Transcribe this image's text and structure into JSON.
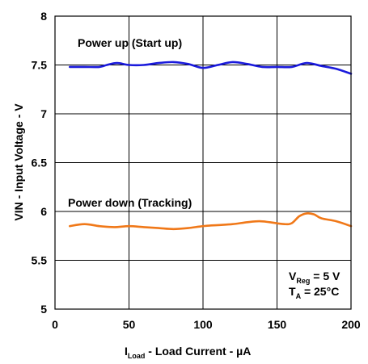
{
  "chart_data": {
    "type": "line",
    "xlabel": {
      "main": "I",
      "sub": "Load",
      "rest": " - Load Current - µA"
    },
    "ylabel": "VIN - Input Voltage - V",
    "xlim": [
      0,
      200
    ],
    "ylim": [
      5,
      8
    ],
    "xticks": [
      "0",
      "50",
      "100",
      "150",
      "200"
    ],
    "yticks": [
      "5",
      "5.5",
      "6",
      "6.5",
      "7",
      "7.5",
      "8"
    ],
    "grid": true,
    "series": [
      {
        "name": "Power up (Start up)",
        "color": "#1a1adc",
        "x": [
          10,
          20,
          30,
          35,
          42,
          50,
          60,
          70,
          80,
          90,
          100,
          110,
          120,
          130,
          140,
          150,
          160,
          170,
          180,
          190,
          200
        ],
        "y": [
          7.48,
          7.48,
          7.48,
          7.5,
          7.52,
          7.5,
          7.5,
          7.52,
          7.53,
          7.51,
          7.47,
          7.5,
          7.53,
          7.51,
          7.48,
          7.48,
          7.48,
          7.52,
          7.49,
          7.46,
          7.41
        ]
      },
      {
        "name": "Power down (Tracking)",
        "color": "#f07818",
        "x": [
          10,
          20,
          30,
          40,
          50,
          60,
          70,
          80,
          90,
          100,
          110,
          120,
          130,
          138,
          145,
          155,
          160,
          165,
          170,
          175,
          180,
          190,
          200
        ],
        "y": [
          5.85,
          5.87,
          5.85,
          5.84,
          5.85,
          5.84,
          5.83,
          5.82,
          5.83,
          5.85,
          5.86,
          5.87,
          5.89,
          5.9,
          5.89,
          5.87,
          5.88,
          5.95,
          5.98,
          5.97,
          5.93,
          5.9,
          5.85
        ]
      }
    ],
    "annotations": {
      "power_up_label": "Power up (Start up)",
      "power_down_label": "Power down (Tracking)",
      "vreg": {
        "main": "V",
        "sub": "Reg",
        "rest": " = 5 V"
      },
      "ta": {
        "main": "T",
        "sub": "A",
        "rest": " = 25°C"
      }
    }
  }
}
